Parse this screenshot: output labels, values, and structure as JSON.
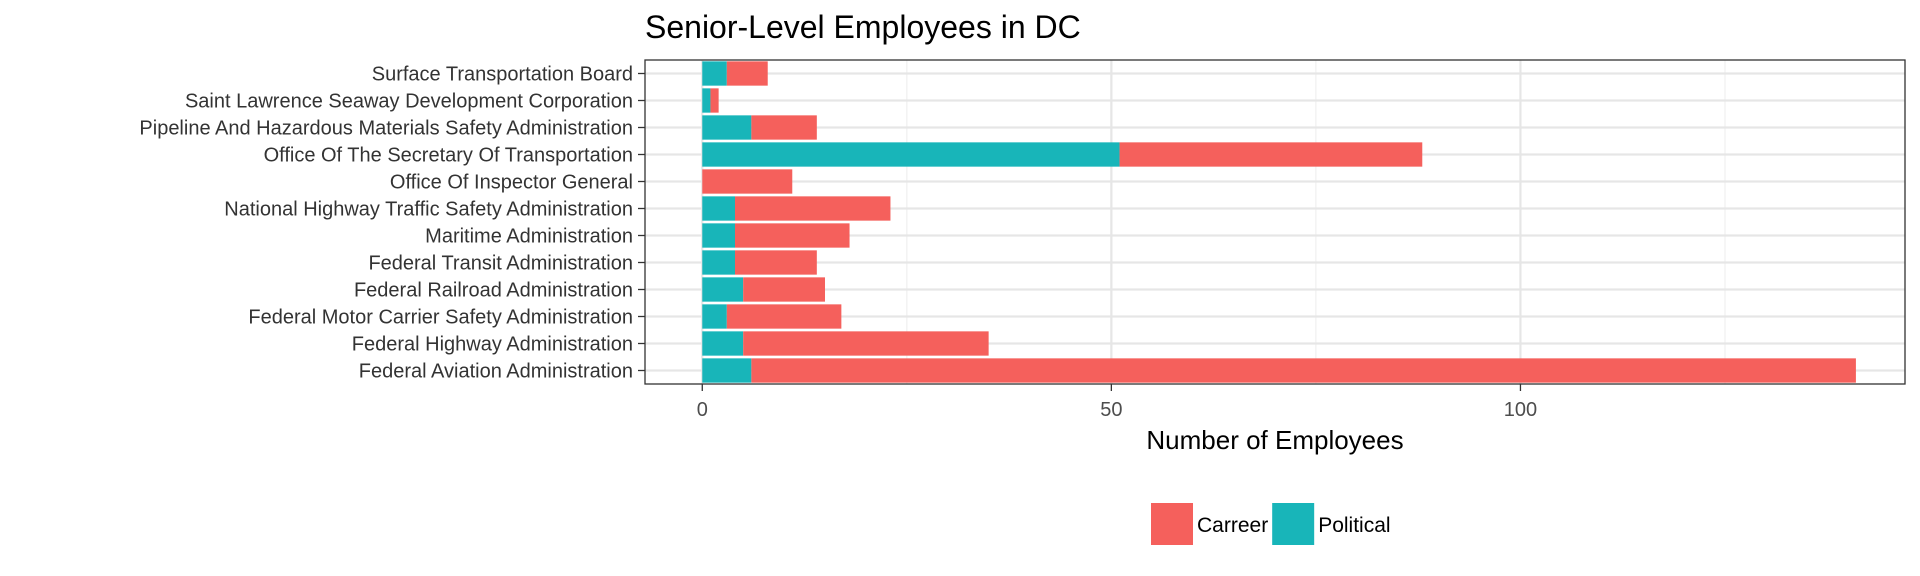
{
  "chart_data": {
    "type": "bar",
    "orientation": "horizontal",
    "stacked": true,
    "title": "Senior-Level Employees in DC",
    "xlabel": "Number of Employees",
    "ylabel": "",
    "xlim": [
      -7,
      147
    ],
    "xticks": [
      0,
      50,
      100
    ],
    "grid": true,
    "legend_position": "bottom",
    "categories": [
      "Surface Transportation Board",
      "Saint Lawrence Seaway Development Corporation",
      "Pipeline And Hazardous Materials Safety Administration",
      "Office Of The Secretary Of Transportation",
      "Office Of Inspector General",
      "National Highway Traffic Safety Administration",
      "Maritime Administration",
      "Federal Transit Administration",
      "Federal Railroad Administration",
      "Federal Motor Carrier Safety Administration",
      "Federal Highway Administration",
      "Federal Aviation Administration"
    ],
    "series": [
      {
        "name": "Political",
        "color": "#18B5B9",
        "values": [
          3,
          1,
          6,
          51,
          0,
          4,
          4,
          4,
          5,
          3,
          5,
          6
        ]
      },
      {
        "name": "Carreer",
        "color": "#F5605C",
        "values": [
          5,
          1,
          8,
          37,
          11,
          19,
          14,
          10,
          10,
          14,
          30,
          135
        ]
      }
    ],
    "legend": [
      "Carreer",
      "Political"
    ]
  }
}
